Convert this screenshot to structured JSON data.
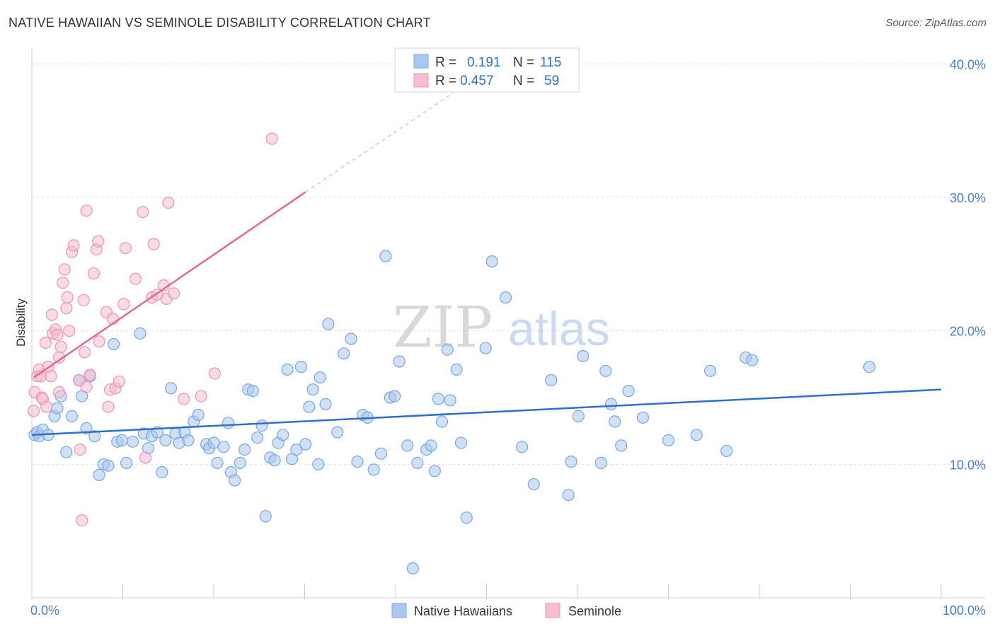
{
  "title": "NATIVE HAWAIIAN VS SEMINOLE DISABILITY CORRELATION CHART",
  "source": "Source: ZipAtlas.com",
  "watermark": {
    "part1": "ZIP",
    "part2": "atlas"
  },
  "chart_data": {
    "type": "scatter",
    "ylabel": "Disability",
    "xlim": [
      0,
      100
    ],
    "ylim": [
      0,
      41.5
    ],
    "x_tick_labels": [
      {
        "value": 0,
        "label": "0.0%"
      },
      {
        "value": 100,
        "label": "100.0%"
      }
    ],
    "y_tick_labels": [
      {
        "value": 10,
        "label": "10.0%"
      },
      {
        "value": 20,
        "label": "20.0%"
      },
      {
        "value": 30,
        "label": "30.0%"
      },
      {
        "value": 40,
        "label": "40.0%"
      }
    ],
    "grid": true,
    "legend_position": "top-center",
    "legend": [
      {
        "r_label": "R =",
        "r_value": "0.191",
        "n_label": "N =",
        "n_value": "115"
      },
      {
        "r_label": "R =",
        "r_value": "0.457",
        "n_label": "N =",
        "n_value": "59"
      }
    ],
    "series": [
      {
        "name": "Native Hawaiians",
        "color": "#a9c8f0",
        "stroke": "#7aa6e0",
        "trend_color": "#2f6fcc",
        "trend": {
          "x1": 0,
          "y1": 12.2,
          "x2": 100,
          "y2": 15.6,
          "dashed_from": null
        },
        "points": [
          [
            0.3,
            12.2
          ],
          [
            0.6,
            12.4
          ],
          [
            0.8,
            12.1
          ],
          [
            1.2,
            12.6
          ],
          [
            1.8,
            12.2
          ],
          [
            2.5,
            13.6
          ],
          [
            2.8,
            14.2
          ],
          [
            3.2,
            15.1
          ],
          [
            3.8,
            10.9
          ],
          [
            4.4,
            13.6
          ],
          [
            5.2,
            16.3
          ],
          [
            5.5,
            15.1
          ],
          [
            6.0,
            12.7
          ],
          [
            6.4,
            16.6
          ],
          [
            6.9,
            12.1
          ],
          [
            7.4,
            9.2
          ],
          [
            7.9,
            10.0
          ],
          [
            8.4,
            9.9
          ],
          [
            9.0,
            19.0
          ],
          [
            9.4,
            11.7
          ],
          [
            9.9,
            11.8
          ],
          [
            10.4,
            10.1
          ],
          [
            11.1,
            11.7
          ],
          [
            11.9,
            19.8
          ],
          [
            12.3,
            12.3
          ],
          [
            12.8,
            11.2
          ],
          [
            13.2,
            12.1
          ],
          [
            13.8,
            12.4
          ],
          [
            14.3,
            9.4
          ],
          [
            14.7,
            11.8
          ],
          [
            15.3,
            15.7
          ],
          [
            15.8,
            12.3
          ],
          [
            16.2,
            11.6
          ],
          [
            16.8,
            12.4
          ],
          [
            17.2,
            11.8
          ],
          [
            17.8,
            13.2
          ],
          [
            18.3,
            13.7
          ],
          [
            19.2,
            11.5
          ],
          [
            19.5,
            11.2
          ],
          [
            20.0,
            11.6
          ],
          [
            20.4,
            10.1
          ],
          [
            21.1,
            11.3
          ],
          [
            21.6,
            13.1
          ],
          [
            21.9,
            9.4
          ],
          [
            22.3,
            8.8
          ],
          [
            22.9,
            10.1
          ],
          [
            23.4,
            11.1
          ],
          [
            23.8,
            15.6
          ],
          [
            24.3,
            15.5
          ],
          [
            24.8,
            12.0
          ],
          [
            25.3,
            12.9
          ],
          [
            25.7,
            6.1
          ],
          [
            26.2,
            10.5
          ],
          [
            26.7,
            10.3
          ],
          [
            27.1,
            11.6
          ],
          [
            27.6,
            12.2
          ],
          [
            28.1,
            17.1
          ],
          [
            28.6,
            10.4
          ],
          [
            29.1,
            11.1
          ],
          [
            29.6,
            17.3
          ],
          [
            30.1,
            11.5
          ],
          [
            30.5,
            14.3
          ],
          [
            30.9,
            15.6
          ],
          [
            31.5,
            10.0
          ],
          [
            31.7,
            16.5
          ],
          [
            32.3,
            14.5
          ],
          [
            32.6,
            20.5
          ],
          [
            33.6,
            12.4
          ],
          [
            34.3,
            18.3
          ],
          [
            35.1,
            19.4
          ],
          [
            35.8,
            10.2
          ],
          [
            36.4,
            13.7
          ],
          [
            36.9,
            13.5
          ],
          [
            37.6,
            9.6
          ],
          [
            38.4,
            10.8
          ],
          [
            38.9,
            25.6
          ],
          [
            39.4,
            15.0
          ],
          [
            39.9,
            15.1
          ],
          [
            40.4,
            17.7
          ],
          [
            41.3,
            11.4
          ],
          [
            41.9,
            2.2
          ],
          [
            42.4,
            10.1
          ],
          [
            43.4,
            11.1
          ],
          [
            43.9,
            11.4
          ],
          [
            44.3,
            9.5
          ],
          [
            44.7,
            14.9
          ],
          [
            45.1,
            13.2
          ],
          [
            45.7,
            18.6
          ],
          [
            46.0,
            14.8
          ],
          [
            46.7,
            17.1
          ],
          [
            47.2,
            11.6
          ],
          [
            47.8,
            6.0
          ],
          [
            49.9,
            18.7
          ],
          [
            50.6,
            25.2
          ],
          [
            52.1,
            22.5
          ],
          [
            53.9,
            11.3
          ],
          [
            55.2,
            8.5
          ],
          [
            57.1,
            16.3
          ],
          [
            59.0,
            7.7
          ],
          [
            59.3,
            10.2
          ],
          [
            60.1,
            13.6
          ],
          [
            60.6,
            18.1
          ],
          [
            62.6,
            10.1
          ],
          [
            63.1,
            17.0
          ],
          [
            63.7,
            14.5
          ],
          [
            64.1,
            13.2
          ],
          [
            64.8,
            11.4
          ],
          [
            65.6,
            15.5
          ],
          [
            67.2,
            13.5
          ],
          [
            70.0,
            11.8
          ],
          [
            73.1,
            12.2
          ],
          [
            74.6,
            17.0
          ],
          [
            76.4,
            11.0
          ],
          [
            78.5,
            18.0
          ],
          [
            79.2,
            17.8
          ],
          [
            92.1,
            17.3
          ]
        ]
      },
      {
        "name": "Seminole",
        "color": "#f6bcd0",
        "stroke": "#ee93b3",
        "trend_color": "#e06a95",
        "trend": {
          "x1": 0.2,
          "y1": 16.5,
          "x2": 30.1,
          "y2": 30.4,
          "dashed_to": {
            "x": 46.3,
            "y": 37.8
          }
        },
        "points": [
          [
            0.2,
            14.0
          ],
          [
            0.3,
            15.4
          ],
          [
            0.6,
            16.6
          ],
          [
            0.8,
            17.1
          ],
          [
            1.0,
            16.6
          ],
          [
            1.1,
            15.0
          ],
          [
            1.2,
            14.9
          ],
          [
            1.5,
            19.1
          ],
          [
            1.6,
            14.3
          ],
          [
            1.8,
            17.3
          ],
          [
            2.1,
            16.6
          ],
          [
            2.2,
            21.2
          ],
          [
            2.3,
            19.8
          ],
          [
            2.6,
            20.1
          ],
          [
            2.8,
            19.7
          ],
          [
            3.0,
            18.0
          ],
          [
            3.0,
            15.4
          ],
          [
            3.2,
            18.8
          ],
          [
            3.4,
            23.6
          ],
          [
            3.6,
            24.6
          ],
          [
            3.8,
            21.7
          ],
          [
            3.9,
            22.5
          ],
          [
            4.1,
            20.0
          ],
          [
            4.4,
            25.9
          ],
          [
            4.6,
            26.4
          ],
          [
            5.2,
            16.3
          ],
          [
            5.3,
            11.1
          ],
          [
            5.5,
            5.8
          ],
          [
            5.7,
            22.3
          ],
          [
            5.8,
            18.4
          ],
          [
            6.0,
            29.0
          ],
          [
            6.4,
            16.7
          ],
          [
            6.8,
            24.3
          ],
          [
            7.1,
            26.1
          ],
          [
            7.3,
            26.7
          ],
          [
            7.4,
            19.2
          ],
          [
            8.2,
            21.4
          ],
          [
            8.4,
            14.3
          ],
          [
            8.6,
            15.6
          ],
          [
            8.9,
            20.9
          ],
          [
            9.2,
            15.7
          ],
          [
            9.6,
            16.2
          ],
          [
            10.1,
            22.0
          ],
          [
            10.3,
            26.2
          ],
          [
            11.4,
            23.9
          ],
          [
            12.2,
            28.9
          ],
          [
            12.5,
            10.5
          ],
          [
            13.2,
            22.5
          ],
          [
            13.4,
            26.5
          ],
          [
            13.8,
            22.7
          ],
          [
            14.5,
            23.4
          ],
          [
            14.8,
            22.4
          ],
          [
            15.0,
            29.6
          ],
          [
            15.6,
            22.8
          ],
          [
            16.7,
            14.9
          ],
          [
            18.6,
            15.1
          ],
          [
            20.1,
            16.8
          ],
          [
            26.4,
            34.4
          ],
          [
            6.0,
            15.8
          ]
        ]
      }
    ]
  }
}
